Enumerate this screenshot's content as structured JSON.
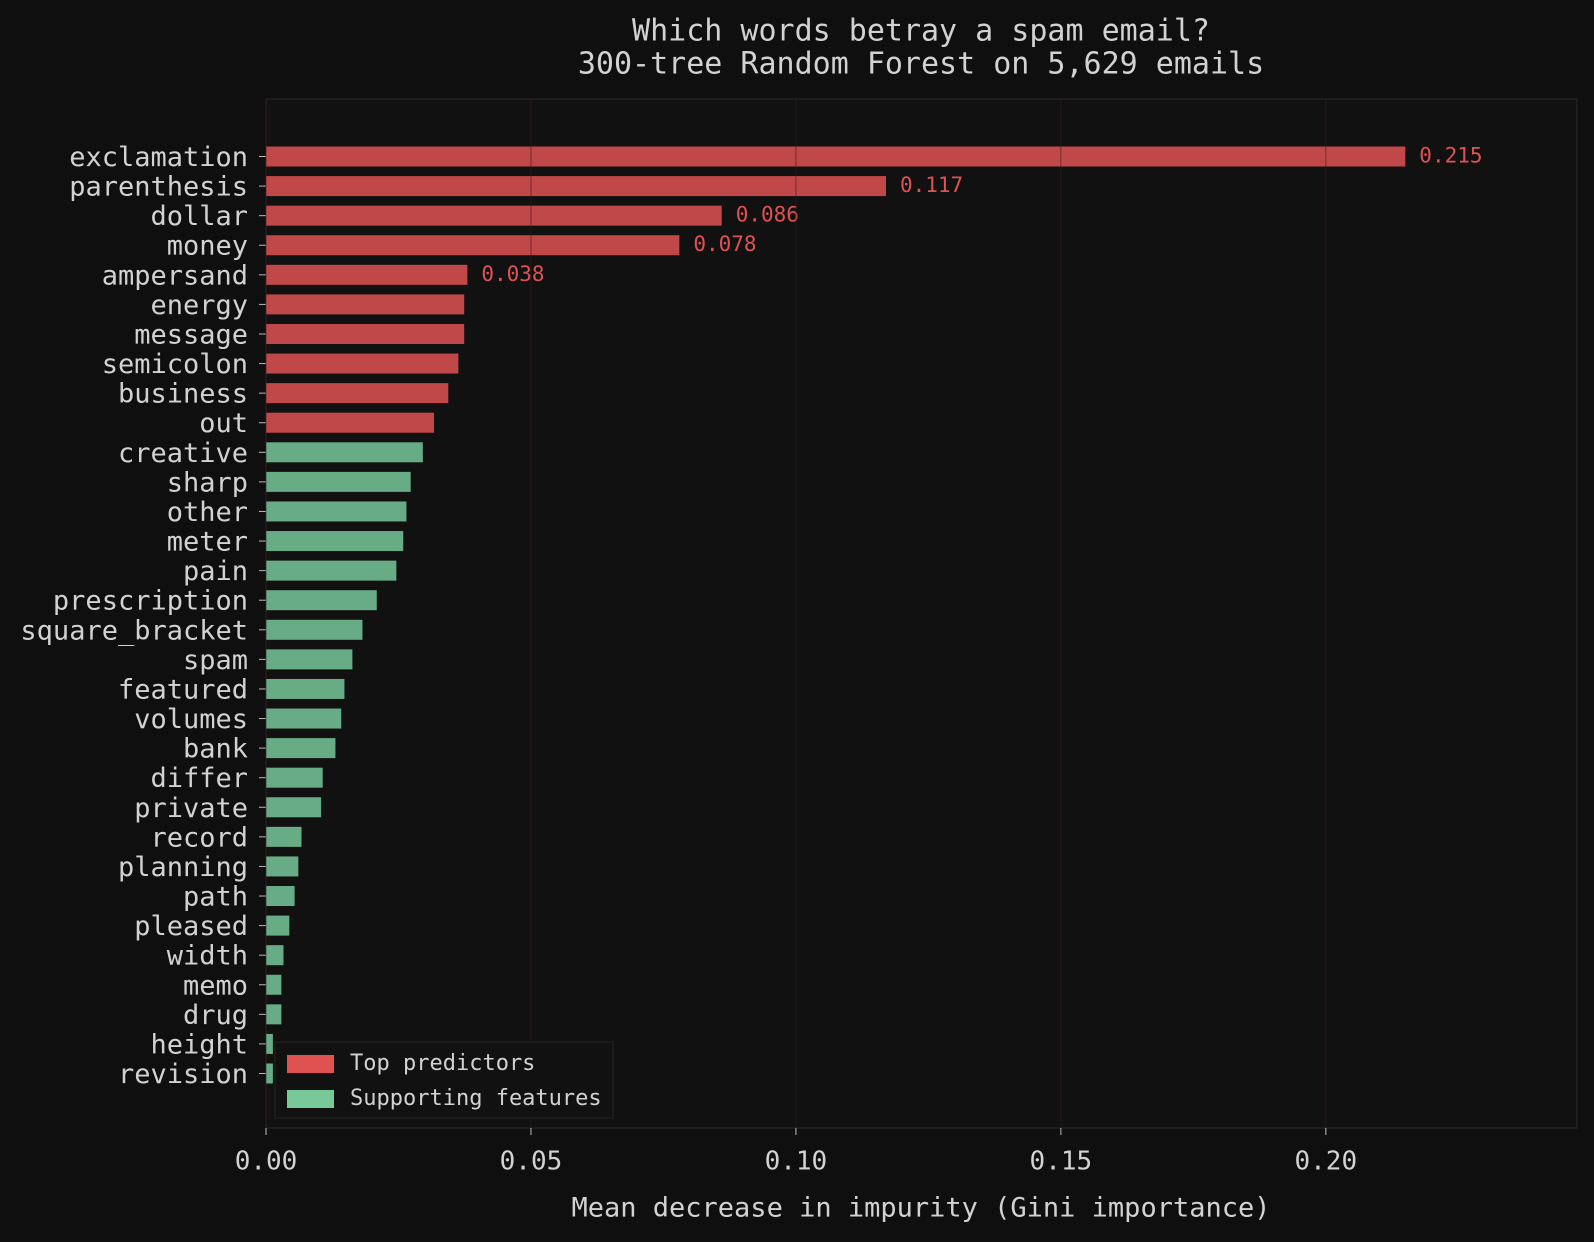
{
  "chart_data": {
    "type": "barh",
    "title": "Which words betray a spam email?",
    "subtitle": "300-tree Random Forest on 5,629 emails",
    "xlabel": "Mean decrease in impurity (Gini importance)",
    "categories": [
      "exclamation",
      "parenthesis",
      "dollar",
      "money",
      "ampersand",
      "energy",
      "message",
      "semicolon",
      "business",
      "out",
      "creative",
      "sharp",
      "other",
      "meter",
      "pain",
      "prescription",
      "square_bracket",
      "spam",
      "featured",
      "volumes",
      "bank",
      "differ",
      "private",
      "record",
      "planning",
      "path",
      "pleased",
      "width",
      "memo",
      "drug",
      "height",
      "revision"
    ],
    "series": [
      {
        "name": "Top predictors",
        "color": "#e05252",
        "values": [
          0.215,
          0.117,
          0.086,
          0.078,
          0.038,
          0.0374,
          0.0374,
          0.0363,
          0.0344,
          0.0317,
          null,
          null,
          null,
          null,
          null,
          null,
          null,
          null,
          null,
          null,
          null,
          null,
          null,
          null,
          null,
          null,
          null,
          null,
          null,
          null,
          null,
          null
        ],
        "value_labels": [
          "0.215",
          "0.117",
          "0.086",
          "0.078",
          "0.038",
          null,
          null,
          null,
          null,
          null,
          null,
          null,
          null,
          null,
          null,
          null,
          null,
          null,
          null,
          null,
          null,
          null,
          null,
          null,
          null,
          null,
          null,
          null,
          null,
          null,
          null,
          null
        ]
      },
      {
        "name": "Supporting features",
        "color": "#78c89a",
        "values": [
          null,
          null,
          null,
          null,
          null,
          null,
          null,
          null,
          null,
          null,
          0.0296,
          0.0273,
          0.0265,
          0.0259,
          0.0246,
          0.0209,
          0.0182,
          0.0163,
          0.0148,
          0.0142,
          0.0131,
          0.0107,
          0.0104,
          0.0067,
          0.0061,
          0.0054,
          0.0044,
          0.0033,
          0.0029,
          0.0029,
          0.0013,
          0.0013
        ]
      }
    ],
    "xlim": [
      0,
      0.2474
    ],
    "xticks": [
      {
        "value": 0,
        "label": "0.00"
      },
      0.05,
      {
        "value": 0.1,
        "label": "0.10"
      },
      0.15,
      {
        "value": 0.2,
        "label": "0.20"
      }
    ],
    "grid": true,
    "legend": "lower left"
  }
}
